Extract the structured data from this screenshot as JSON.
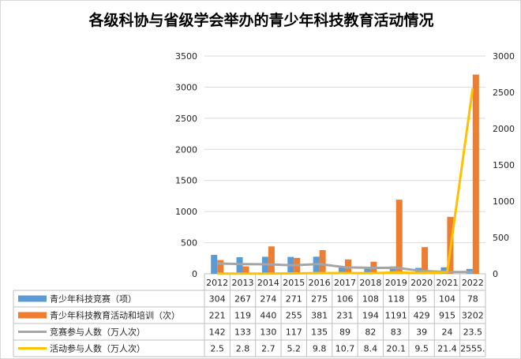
{
  "chart_data": {
    "type": "bar",
    "title": "各级科协与省级学会举办的青少年科技教育活动情况",
    "categories": [
      "2012",
      "2013",
      "2014",
      "2015",
      "2016",
      "2017",
      "2018",
      "2019",
      "2020",
      "2021",
      "2022"
    ],
    "series": [
      {
        "name": "青少年科技竞赛（项）",
        "kind": "bar",
        "axis": "left",
        "color": "#5b9bd5",
        "values": [
          304,
          267,
          274,
          271,
          275,
          106,
          108,
          118,
          95,
          104,
          78
        ],
        "labels": [
          "304",
          "267",
          "274",
          "271",
          "275",
          "106",
          "108",
          "118",
          "95",
          "104",
          "78"
        ]
      },
      {
        "name": "青少年科技教育活动和培训（次）",
        "kind": "bar",
        "axis": "left",
        "color": "#ed7d31",
        "values": [
          221,
          119,
          440,
          255,
          381,
          231,
          194,
          1191,
          429,
          915,
          3202
        ],
        "labels": [
          "221",
          "119",
          "440",
          "255",
          "381",
          "231",
          "194",
          "1191",
          "429",
          "915",
          "3202"
        ]
      },
      {
        "name": "竞赛参与人数（万人次）",
        "kind": "line",
        "axis": "right",
        "color": "#a5a5a5",
        "values": [
          142,
          133,
          130,
          117,
          135,
          89,
          82,
          83,
          39,
          24,
          23.5
        ],
        "labels": [
          "142",
          "133",
          "130",
          "117",
          "135",
          "89",
          "82",
          "83",
          "39",
          "24",
          "23.5"
        ]
      },
      {
        "name": "活动参与人数（万人次）",
        "kind": "line",
        "axis": "right",
        "color": "#ffc000",
        "values": [
          2.5,
          2.8,
          2.7,
          5.2,
          9.8,
          10.7,
          8.4,
          20.1,
          9.5,
          21.4,
          2555
        ],
        "labels": [
          "2.5",
          "2.8",
          "2.7",
          "5.2",
          "9.8",
          "10.7",
          "8.4",
          "20.1",
          "9.5",
          "21.4",
          "2555."
        ]
      }
    ],
    "y_left": {
      "ylim": [
        0,
        3500
      ],
      "ticks": [
        "0",
        "500",
        "1000",
        "1500",
        "2000",
        "2500",
        "3000",
        "3500"
      ]
    },
    "y_right": {
      "ylim": [
        0,
        3000
      ],
      "ticks": [
        "0",
        "500",
        "1000",
        "1500",
        "2000",
        "2500",
        "3000"
      ]
    },
    "grid": true,
    "legend": "data-table"
  }
}
